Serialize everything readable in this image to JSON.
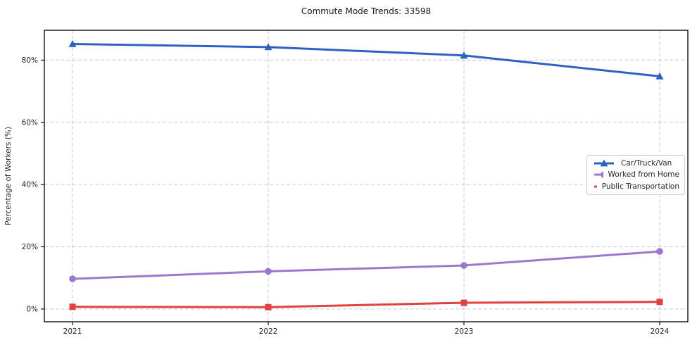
{
  "chart_data": {
    "type": "line",
    "title": "Commute Mode Trends: 33598",
    "ylabel": "Percentage of Workers (%)",
    "xlabel": "",
    "x": [
      2021,
      2022,
      2023,
      2024
    ],
    "x_tick_labels": [
      "2021",
      "2022",
      "2023",
      "2024"
    ],
    "y_ticks": [
      0,
      20,
      40,
      60,
      80
    ],
    "y_tick_labels": [
      "0%",
      "20%",
      "40%",
      "60%",
      "80%"
    ],
    "xlim": [
      2020.856,
      2024.144
    ],
    "ylim": [
      -4.1,
      89.6
    ],
    "grid": true,
    "grid_style": "dashed",
    "legend_position": "center-right",
    "series": [
      {
        "name": "Car/Truck/Van",
        "color": "#2e62c2",
        "marker": "triangle",
        "values": [
          85.2,
          84.2,
          81.5,
          74.8
        ]
      },
      {
        "name": "Worked from Home",
        "color": "#9a78d0",
        "marker": "circle",
        "values": [
          9.7,
          12.1,
          14.0,
          18.5
        ]
      },
      {
        "name": "Public Transportation",
        "color": "#e04141",
        "marker": "square",
        "values": [
          0.7,
          0.6,
          2.0,
          2.3
        ]
      }
    ],
    "colors": {
      "grid": "#c9c9c9",
      "spine": "#000000",
      "tick_text": "#262626",
      "title_text": "#1a1a1a"
    }
  }
}
